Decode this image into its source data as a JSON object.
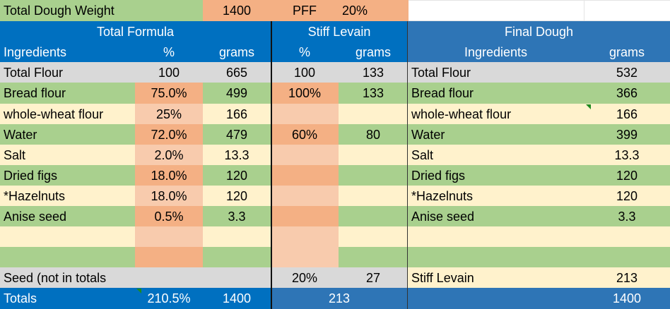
{
  "top": {
    "total_dough_weight_label": "Total Dough Weight",
    "total_dough_weight_value": "1400",
    "pff_label": "PFF",
    "pff_value": "20%"
  },
  "sections": {
    "total_formula": "Total Formula",
    "stiff_levain": "Stiff Levain",
    "final_dough": "Final Dough"
  },
  "columns": {
    "ingredients": "Ingredients",
    "percent": "%",
    "grams": "grams",
    "levain_percent": "%",
    "levain_grams": "grams",
    "final_ingredients": "Ingredients",
    "final_grams": "grams"
  },
  "rows": [
    {
      "name": "Total Flour",
      "pct": "100",
      "grams": "665",
      "lev_pct": "100",
      "lev_grams": "133",
      "final_name": "Total Flour",
      "final_grams": "532"
    },
    {
      "name": "Bread flour",
      "pct": "75.0%",
      "grams": "499",
      "lev_pct": "100%",
      "lev_grams": "133",
      "final_name": "Bread flour",
      "final_grams": "366"
    },
    {
      "name": "whole-wheat flour",
      "pct": "25%",
      "grams": "166",
      "lev_pct": "",
      "lev_grams": "",
      "final_name": "whole-wheat flour",
      "final_grams": "166"
    },
    {
      "name": "Water",
      "pct": "72.0%",
      "grams": "479",
      "lev_pct": "60%",
      "lev_grams": "80",
      "final_name": "Water",
      "final_grams": "399"
    },
    {
      "name": "Salt",
      "pct": "2.0%",
      "grams": "13.3",
      "lev_pct": "",
      "lev_grams": "",
      "final_name": "Salt",
      "final_grams": "13.3"
    },
    {
      "name": "Dried figs",
      "pct": "18.0%",
      "grams": "120",
      "lev_pct": "",
      "lev_grams": "",
      "final_name": "Dried figs",
      "final_grams": "120"
    },
    {
      "name": "*Hazelnuts",
      "pct": "18.0%",
      "grams": "120",
      "lev_pct": "",
      "lev_grams": "",
      "final_name": "*Hazelnuts",
      "final_grams": "120"
    },
    {
      "name": "Anise seed",
      "pct": "0.5%",
      "grams": "3.3",
      "lev_pct": "",
      "lev_grams": "",
      "final_name": "Anise seed",
      "final_grams": "3.3"
    },
    {
      "name": "",
      "pct": "",
      "grams": "",
      "lev_pct": "",
      "lev_grams": "",
      "final_name": "",
      "final_grams": ""
    },
    {
      "name": "",
      "pct": "",
      "grams": "",
      "lev_pct": "",
      "lev_grams": "",
      "final_name": "",
      "final_grams": ""
    },
    {
      "name": "Seed (not in totals",
      "pct": "",
      "grams": "",
      "lev_pct": "20%",
      "lev_grams": "27",
      "final_name": "Stiff Levain",
      "final_grams": "213"
    }
  ],
  "totals": {
    "label": "Totals",
    "pct": "210.5%",
    "grams": "1400",
    "lev_grams": "213",
    "final_grams": "1400"
  },
  "colors": {
    "header_blue": "#0070c0",
    "final_header_blue": "#2e75b6",
    "green": "#a9d08e",
    "cream": "#fff2cc",
    "salmon": "#f4b084",
    "light_salmon": "#f8cbad",
    "gray": "#d9d9d9"
  }
}
